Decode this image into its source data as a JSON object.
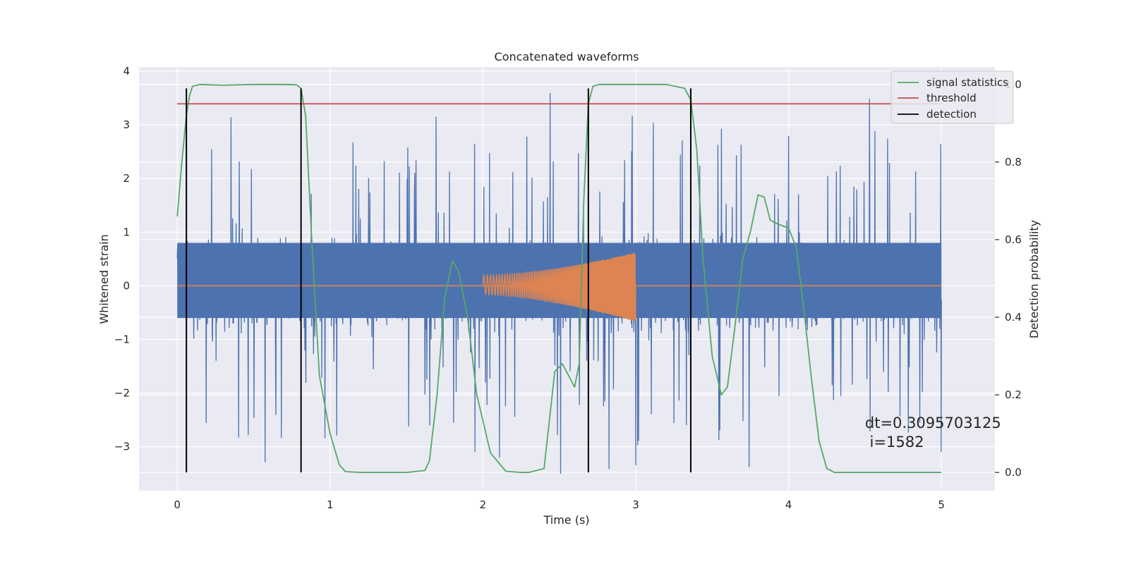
{
  "chart_data": {
    "type": "line",
    "title": "Concatenated waveforms",
    "xlabel": "Time (s)",
    "ylabel": "Whitened strain",
    "ylabel_right": "Detection probability",
    "xlim": [
      -0.25,
      5.35
    ],
    "ylim": [
      -3.82,
      4.08
    ],
    "ylim_right": [
      -0.047,
      1.045
    ],
    "xticks": [
      0,
      1,
      2,
      3,
      4,
      5
    ],
    "yticks": [
      -3,
      -2,
      -1,
      0,
      1,
      2,
      3,
      4
    ],
    "yticks_right": [
      0.0,
      0.2,
      0.4,
      0.6,
      0.8,
      1.0
    ],
    "xtick_labels": [
      "0",
      "1",
      "2",
      "3",
      "4",
      "5"
    ],
    "ytick_labels": [
      "−3",
      "−2",
      "−1",
      "0",
      "1",
      "2",
      "3",
      "4"
    ],
    "ytick_right_labels": [
      "0.0",
      "0.2",
      "0.4",
      "0.6",
      "0.8",
      "1.0"
    ],
    "grid": true,
    "legend_position": "top-right",
    "legend": [
      "signal statistics",
      "threshold",
      "detection"
    ],
    "colors": {
      "noise": "#4c72b0",
      "injection": "#dd8452",
      "statistics": "#55a868",
      "threshold": "#c44e52",
      "detection": "#000000",
      "background": "#eaeaf2",
      "grid": "#ffffff"
    },
    "series": [
      {
        "name": "strain",
        "description": "whitened noise strain, 0 to 5 s, roughly ±0.6 dense band with spikes up to ±3.6",
        "x_range": [
          0,
          5
        ],
        "spike_max": [
          3.7,
          -3.5
        ]
      },
      {
        "name": "injection",
        "x_range": [
          2.0,
          3.0
        ],
        "amp_start": 0.18,
        "amp_end": 0.65,
        "offset_start": 0.02,
        "offset_end": -0.02
      },
      {
        "name": "signal statistics",
        "axis": "right",
        "x": [
          0.0,
          0.03,
          0.06,
          0.08,
          0.1,
          0.15,
          0.3,
          0.5,
          0.7,
          0.78,
          0.81,
          0.84,
          0.88,
          0.93,
          1.0,
          1.06,
          1.1,
          1.2,
          1.5,
          1.62,
          1.65,
          1.7,
          1.75,
          1.8,
          1.84,
          1.9,
          1.96,
          2.05,
          2.15,
          2.25,
          2.3,
          2.4,
          2.42,
          2.47,
          2.52,
          2.56,
          2.6,
          2.63,
          2.66,
          2.69,
          2.72,
          2.76,
          2.8,
          3.0,
          3.2,
          3.32,
          3.36,
          3.4,
          3.44,
          3.5,
          3.56,
          3.6,
          3.65,
          3.7,
          3.75,
          3.8,
          3.84,
          3.88,
          3.93,
          4.0,
          4.05,
          4.1,
          4.15,
          4.2,
          4.25,
          4.3,
          4.5,
          5.0
        ],
        "y": [
          0.66,
          0.8,
          0.92,
          0.97,
          0.995,
          1.0,
          0.998,
          1.0,
          1.0,
          0.999,
          0.99,
          0.92,
          0.6,
          0.25,
          0.1,
          0.02,
          0.002,
          0.0,
          0.0,
          0.005,
          0.03,
          0.2,
          0.45,
          0.545,
          0.52,
          0.4,
          0.2,
          0.05,
          0.003,
          0.0,
          0.0,
          0.01,
          0.08,
          0.26,
          0.28,
          0.25,
          0.22,
          0.28,
          0.7,
          0.95,
          0.995,
          1.0,
          1.0,
          1.0,
          1.0,
          0.99,
          0.96,
          0.83,
          0.55,
          0.3,
          0.2,
          0.22,
          0.38,
          0.55,
          0.62,
          0.715,
          0.71,
          0.65,
          0.64,
          0.63,
          0.58,
          0.42,
          0.24,
          0.08,
          0.01,
          0.0,
          0.0,
          0.0
        ]
      },
      {
        "name": "threshold",
        "axis": "right",
        "x": [
          0,
          5
        ],
        "y": [
          0.95,
          0.95
        ]
      },
      {
        "name": "detection",
        "type": "vlines",
        "x": [
          0.06,
          0.81,
          2.69,
          3.36
        ],
        "y_range": [
          -3.48,
          3.68
        ]
      }
    ],
    "annotation": {
      "line1": "dt=0.3095703125",
      "line2": " i=1582",
      "x": 4.5,
      "y": -2.65
    }
  }
}
